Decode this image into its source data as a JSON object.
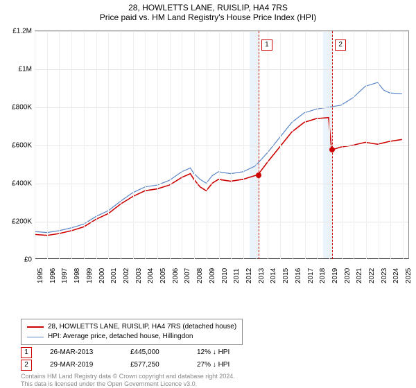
{
  "header": {
    "title": "28, HOWLETTS LANE, RUISLIP, HA4 7RS",
    "subtitle": "Price paid vs. HM Land Registry's House Price Index (HPI)"
  },
  "chart": {
    "type": "line",
    "background_color": "#ffffff",
    "grid_color": "#e5e5e5",
    "axis_color": "#000000",
    "label_fontsize": 10,
    "x": {
      "min": 1995,
      "max": 2025.5,
      "ticks": [
        1995,
        1996,
        1997,
        1998,
        1999,
        2000,
        2001,
        2002,
        2003,
        2004,
        2005,
        2006,
        2007,
        2008,
        2009,
        2010,
        2011,
        2012,
        2013,
        2014,
        2015,
        2016,
        2017,
        2018,
        2019,
        2020,
        2021,
        2022,
        2023,
        2024,
        2025
      ]
    },
    "y": {
      "min": 0,
      "max": 1200000,
      "ticks": [
        {
          "v": 0,
          "label": "£0"
        },
        {
          "v": 200000,
          "label": "£200K"
        },
        {
          "v": 400000,
          "label": "£400K"
        },
        {
          "v": 600000,
          "label": "£600K"
        },
        {
          "v": 800000,
          "label": "£800K"
        },
        {
          "v": 1000000,
          "label": "£1M"
        },
        {
          "v": 1200000,
          "label": "£1.2M"
        }
      ]
    },
    "shade_bands": [
      {
        "from": 2012.5,
        "to": 2013.3,
        "color": "#dbe9f5"
      },
      {
        "from": 2018.5,
        "to": 2019.3,
        "color": "#dbe9f5"
      }
    ],
    "events": [
      {
        "id": "1",
        "x": 2013.24,
        "line_color": "#cc0000"
      },
      {
        "id": "2",
        "x": 2019.24,
        "line_color": "#cc0000"
      }
    ],
    "series": [
      {
        "name": "property_price",
        "label": "28, HOWLETTS LANE, RUISLIP, HA4 7RS (detached house)",
        "color": "#cc0000",
        "line_width": 1.6,
        "markers": [
          {
            "x": 2013.24,
            "y": 445000
          },
          {
            "x": 2019.24,
            "y": 577250
          }
        ],
        "points": [
          [
            1995,
            130000
          ],
          [
            1996,
            125000
          ],
          [
            1997,
            135000
          ],
          [
            1998,
            150000
          ],
          [
            1999,
            170000
          ],
          [
            2000,
            210000
          ],
          [
            2001,
            240000
          ],
          [
            2002,
            290000
          ],
          [
            2003,
            330000
          ],
          [
            2004,
            360000
          ],
          [
            2005,
            370000
          ],
          [
            2006,
            390000
          ],
          [
            2007,
            430000
          ],
          [
            2007.7,
            450000
          ],
          [
            2008,
            420000
          ],
          [
            2008.5,
            380000
          ],
          [
            2009,
            360000
          ],
          [
            2009.5,
            400000
          ],
          [
            2010,
            420000
          ],
          [
            2011,
            410000
          ],
          [
            2012,
            420000
          ],
          [
            2013,
            440000
          ],
          [
            2013.24,
            445000
          ],
          [
            2014,
            510000
          ],
          [
            2015,
            590000
          ],
          [
            2016,
            670000
          ],
          [
            2017,
            720000
          ],
          [
            2018,
            740000
          ],
          [
            2019,
            745000
          ],
          [
            2019.24,
            577250
          ],
          [
            2019.5,
            580000
          ],
          [
            2020,
            590000
          ],
          [
            2021,
            600000
          ],
          [
            2022,
            615000
          ],
          [
            2023,
            605000
          ],
          [
            2024,
            620000
          ],
          [
            2025,
            630000
          ]
        ]
      },
      {
        "name": "hpi",
        "label": "HPI: Average price, detached house, Hillingdon",
        "color": "#5b87c7",
        "line_width": 1.2,
        "points": [
          [
            1995,
            145000
          ],
          [
            1996,
            140000
          ],
          [
            1997,
            150000
          ],
          [
            1998,
            165000
          ],
          [
            1999,
            185000
          ],
          [
            2000,
            225000
          ],
          [
            2001,
            255000
          ],
          [
            2002,
            305000
          ],
          [
            2003,
            350000
          ],
          [
            2004,
            380000
          ],
          [
            2005,
            390000
          ],
          [
            2006,
            415000
          ],
          [
            2007,
            460000
          ],
          [
            2007.7,
            480000
          ],
          [
            2008,
            450000
          ],
          [
            2008.5,
            420000
          ],
          [
            2009,
            400000
          ],
          [
            2009.5,
            440000
          ],
          [
            2010,
            460000
          ],
          [
            2011,
            450000
          ],
          [
            2012,
            460000
          ],
          [
            2013,
            490000
          ],
          [
            2014,
            560000
          ],
          [
            2015,
            640000
          ],
          [
            2016,
            720000
          ],
          [
            2017,
            770000
          ],
          [
            2018,
            790000
          ],
          [
            2019,
            800000
          ],
          [
            2020,
            810000
          ],
          [
            2021,
            850000
          ],
          [
            2022,
            910000
          ],
          [
            2023,
            930000
          ],
          [
            2023.5,
            890000
          ],
          [
            2024,
            875000
          ],
          [
            2025,
            870000
          ]
        ]
      }
    ]
  },
  "legend": {
    "items": [
      {
        "color": "#cc0000",
        "width": 2,
        "label": "28, HOWLETTS LANE, RUISLIP, HA4 7RS (detached house)"
      },
      {
        "color": "#5b87c7",
        "width": 1,
        "label": "HPI: Average price, detached house, Hillingdon"
      }
    ]
  },
  "sales": [
    {
      "id": "1",
      "date": "26-MAR-2013",
      "price": "£445,000",
      "diff": "12% ↓ HPI"
    },
    {
      "id": "2",
      "date": "29-MAR-2019",
      "price": "£577,250",
      "diff": "27% ↓ HPI"
    }
  ],
  "license": {
    "line1": "Contains HM Land Registry data © Crown copyright and database right 2024.",
    "line2": "This data is licensed under the Open Government Licence v3.0."
  }
}
